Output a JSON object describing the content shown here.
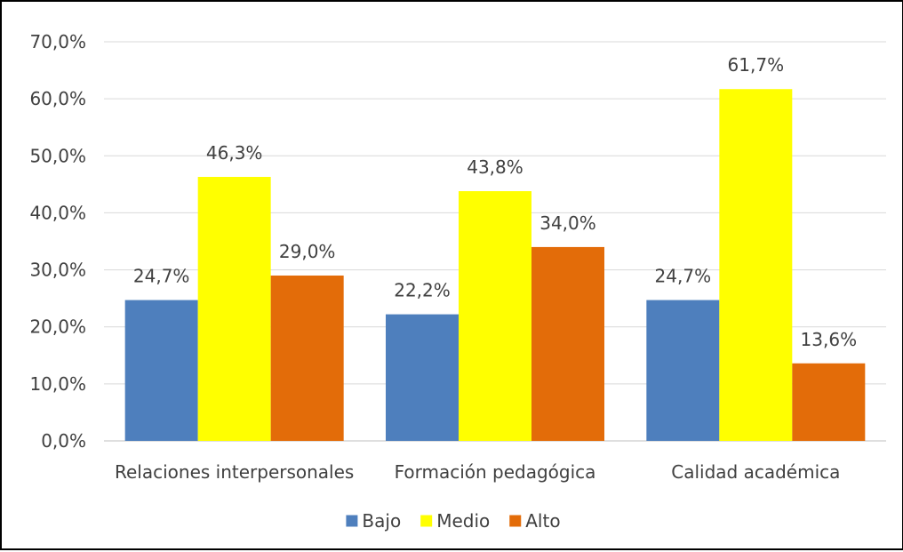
{
  "chart_data": {
    "type": "bar",
    "categories": [
      "Relaciones interpersonales",
      "Formación pedagógica",
      "Calidad académica"
    ],
    "series": [
      {
        "name": "Bajo",
        "color": "#4e7fbd",
        "values": [
          24.7,
          22.2,
          24.7
        ],
        "labels": [
          "24,7%",
          "22,2%",
          "24,7%"
        ]
      },
      {
        "name": "Medio",
        "color": "#ffff00",
        "values": [
          46.3,
          43.8,
          61.7
        ],
        "labels": [
          "46,3%",
          "43,8%",
          "61,7%"
        ]
      },
      {
        "name": "Alto",
        "color": "#e36c09",
        "values": [
          29.0,
          34.0,
          13.6
        ],
        "labels": [
          "29,0%",
          "34,0%",
          "13,6%"
        ]
      }
    ],
    "ylim": [
      0,
      70
    ],
    "yticks": [
      0,
      10,
      20,
      30,
      40,
      50,
      60,
      70
    ],
    "ytick_labels": [
      "0,0%",
      "10,0%",
      "20,0%",
      "30,0%",
      "40,0%",
      "50,0%",
      "60,0%",
      "70,0%"
    ],
    "grid": true,
    "legend": "bottom"
  }
}
